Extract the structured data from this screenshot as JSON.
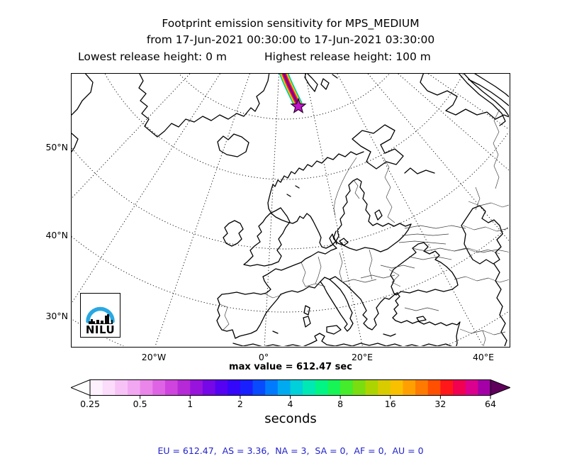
{
  "figure": {
    "title_line1": "Footprint emission sensitivity for MPS_MEDIUM",
    "title_line2": "from 17-Jun-2021 00:30:00 to 17-Jun-2021 03:30:00",
    "release_low_label": "Lowest release height: 0 m",
    "release_high_label": "Highest release height: 100 m",
    "max_value_label": "max value = 612.47 sec",
    "footer_text": "EU = 612.47,  AS = 3.36,  NA = 3,  SA = 0,  AF = 0,  AU = 0",
    "footer_color": "#2222cc"
  },
  "map": {
    "lat_tick_labels": [
      "50°N",
      "40°N",
      "30°N"
    ],
    "lon_tick_labels": [
      "20°W",
      "0°",
      "20°E",
      "40°E"
    ],
    "plume": {
      "star_color": "#c013c9",
      "star_outline": "#2b0030",
      "layers": [
        {
          "color": "#00c4f0",
          "width": 13
        },
        {
          "color": "#2ed32e",
          "width": 11
        },
        {
          "color": "#f4ee00",
          "width": 9.2
        },
        {
          "color": "#ff9900",
          "width": 7.6
        },
        {
          "color": "#ff2a00",
          "width": 6
        },
        {
          "color": "#e6009d",
          "width": 4.6
        },
        {
          "color": "#7c0084",
          "width": 3
        }
      ]
    }
  },
  "logo": {
    "text": "NILU",
    "arc_color": "#29a8e2",
    "skyline_color": "#0a0a0a"
  },
  "colorbar": {
    "unit_label": "seconds",
    "tick_labels": [
      "0.25",
      "0.5",
      "1",
      "2",
      "4",
      "8",
      "16",
      "32",
      "64"
    ],
    "left_arrow_color": "#ffffff",
    "right_arrow_color": "#5f005c",
    "segment_colors": [
      "#fdf1fd",
      "#fbdcfb",
      "#f7c3f7",
      "#f2a7f2",
      "#ea86ea",
      "#df64e5",
      "#cf44de",
      "#b629d7",
      "#9814dc",
      "#7607e7",
      "#5502f2",
      "#3407fa",
      "#1920ff",
      "#084bff",
      "#007bfd",
      "#00aaf1",
      "#00d0da",
      "#00e9b4",
      "#00f585",
      "#17f455",
      "#45ec2b",
      "#79dd10",
      "#acd400",
      "#d8cb00",
      "#f9c000",
      "#ffa000",
      "#ff7a00",
      "#ff4f00",
      "#ff1719",
      "#f20051",
      "#dc008e",
      "#a500a8"
    ]
  },
  "chart_data": {
    "type": "heatmap",
    "title": "Footprint emission sensitivity for MPS_MEDIUM",
    "time_from": "17-Jun-2021 00:30:00",
    "time_to": "17-Jun-2021 03:30:00",
    "lowest_release_height_m": 0,
    "highest_release_height_m": 100,
    "unit": "seconds",
    "max_value_sec": 612.47,
    "colorbar_scale": "logarithmic, factor 2 per major tick",
    "colorbar_tick_values": [
      0.25,
      0.5,
      1,
      2,
      4,
      8,
      16,
      32,
      64
    ],
    "lat_gridlines": [
      "30°N",
      "40°N",
      "50°N"
    ],
    "lon_gridlines": [
      "20°W",
      "0°",
      "20°E",
      "40°E"
    ],
    "region_sums": {
      "EU": 612.47,
      "AS": 3.36,
      "NA": 3,
      "SA": 0,
      "AF": 0,
      "AU": 0
    },
    "plume_note": "narrow high-sensitivity streak entering from top edge of map ending at star receptor marker over the Norwegian Sea"
  }
}
